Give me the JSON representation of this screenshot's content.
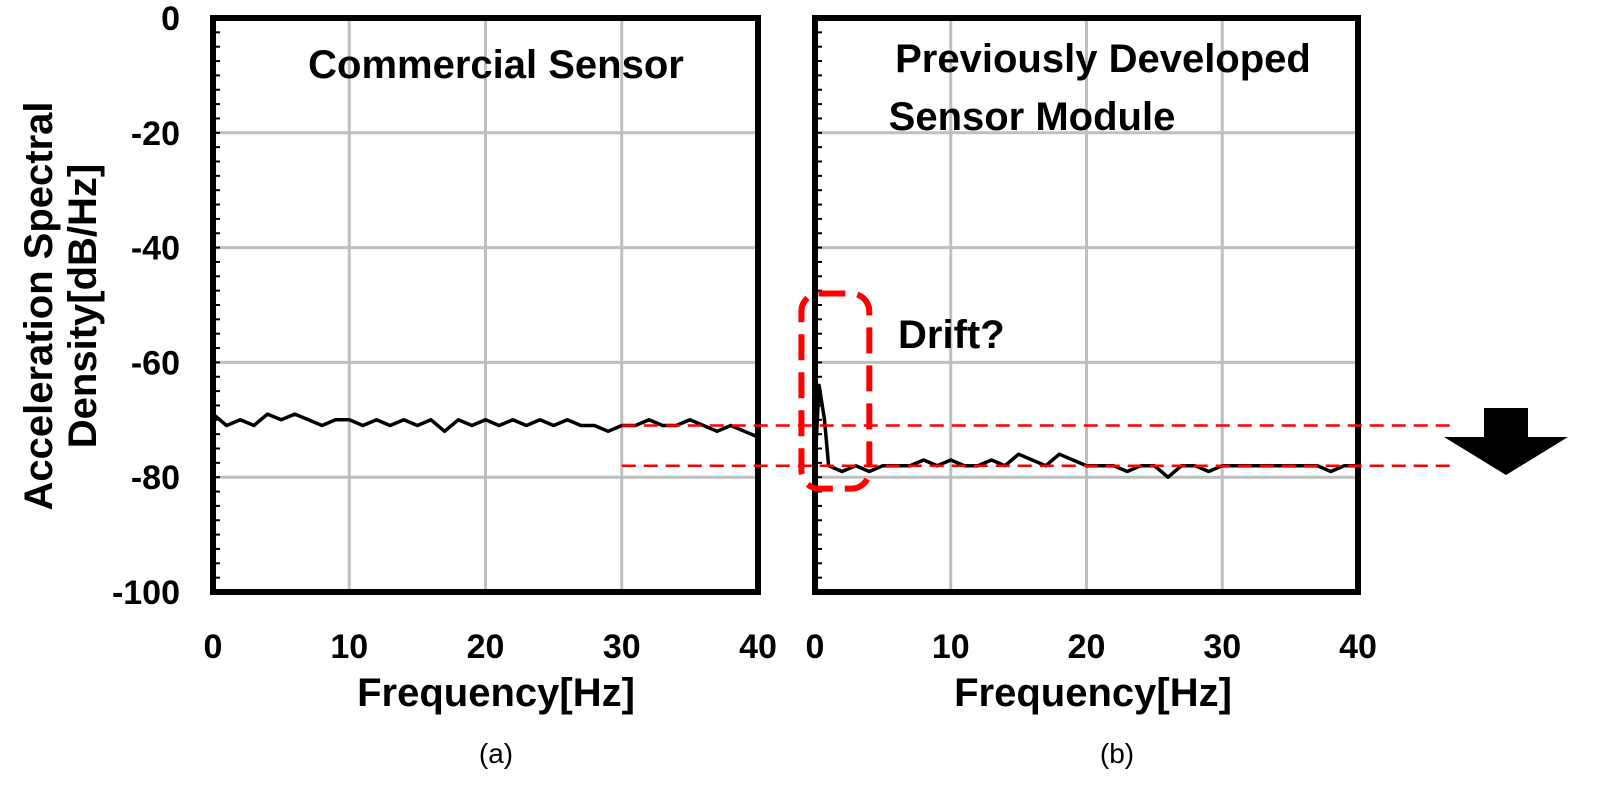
{
  "figure": {
    "y_axis_title_line1": "Acceleration Spectral",
    "y_axis_title_line2": "Density[dB/Hz]",
    "y_ticks": [
      "0",
      "-20",
      "-40",
      "-60",
      "-80",
      "-100"
    ],
    "annotation": "Drift?",
    "colors": {
      "line": "#000000",
      "highlight": "#ff0000",
      "grid": "#bfbfbf",
      "arrow": "#000000"
    }
  },
  "chart_data": [
    {
      "type": "line",
      "panel": "a",
      "title": "Commercial Sensor",
      "caption": "(a)",
      "xlabel": "Frequency[Hz]",
      "ylabel": "Acceleration Spectral Density[dB/Hz]",
      "xlim": [
        0,
        40
      ],
      "ylim": [
        -100,
        0
      ],
      "x_ticks": [
        "0",
        "10",
        "20",
        "30",
        "40"
      ],
      "grid": true,
      "series": [
        {
          "x": [
            0,
            1,
            2,
            3,
            4,
            5,
            6,
            7,
            8,
            9,
            10,
            11,
            12,
            13,
            14,
            15,
            16,
            17,
            18,
            19,
            20,
            21,
            22,
            23,
            24,
            25,
            26,
            27,
            28,
            29,
            30,
            31,
            32,
            33,
            34,
            35,
            36,
            37,
            38,
            39,
            40
          ],
          "values": [
            -69,
            -71,
            -70,
            -71,
            -69,
            -70,
            -69,
            -70,
            -71,
            -70,
            -70,
            -71,
            -70,
            -71,
            -70,
            -71,
            -70,
            -72,
            -70,
            -71,
            -70,
            -71,
            -70,
            -71,
            -70,
            -71,
            -70,
            -71,
            -71,
            -72,
            -71,
            -71,
            -70,
            -71,
            -71,
            -70,
            -71,
            -72,
            -71,
            -72,
            -73
          ],
          "reference_level": -71
        }
      ]
    },
    {
      "type": "line",
      "panel": "b",
      "title": "Previously Developed Sensor Module",
      "title_line1": "Previously Developed",
      "title_line2": "Sensor Module",
      "caption": "(b)",
      "xlabel": "Frequency[Hz]",
      "xlim": [
        0,
        40
      ],
      "ylim": [
        -100,
        0
      ],
      "x_ticks": [
        "0",
        "10",
        "20",
        "30",
        "40"
      ],
      "grid": true,
      "drift_peak": {
        "x": 0.3,
        "y": -64
      },
      "highlight_range_x": [
        -1,
        4
      ],
      "highlight_range_y": [
        -82,
        -48
      ],
      "series": [
        {
          "x": [
            0,
            0.3,
            0.7,
            1,
            2,
            3,
            4,
            5,
            6,
            7,
            8,
            9,
            10,
            11,
            12,
            13,
            14,
            15,
            16,
            17,
            18,
            19,
            20,
            21,
            22,
            23,
            24,
            25,
            26,
            27,
            28,
            29,
            30,
            31,
            32,
            33,
            34,
            35,
            36,
            37,
            38,
            39,
            40
          ],
          "values": [
            -78,
            -64,
            -70,
            -78,
            -79,
            -78,
            -79,
            -78,
            -78,
            -78,
            -77,
            -78,
            -77,
            -78,
            -78,
            -77,
            -78,
            -76,
            -77,
            -78,
            -76,
            -77,
            -78,
            -78,
            -78,
            -79,
            -78,
            -78,
            -80,
            -78,
            -78,
            -79,
            -78,
            -78,
            -78,
            -78,
            -78,
            -78,
            -78,
            -78,
            -79,
            -78,
            -78
          ],
          "reference_level": -78
        }
      ]
    }
  ]
}
